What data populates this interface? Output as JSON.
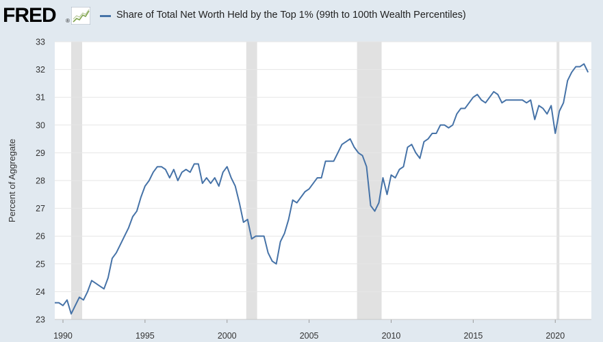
{
  "header": {
    "logo_text": "FRED",
    "logo_reg": "®",
    "legend_label": "Share of Total Net Worth Held by the Top 1% (99th to 100th Wealth Percentiles)"
  },
  "colors": {
    "series": "#4572a7",
    "plot_bg": "#ffffff",
    "page_bg": "#e1e9f0",
    "gridline": "#e6e6e6",
    "recession": "#e1e1e1"
  },
  "chart_data": {
    "type": "line",
    "title": "",
    "xlabel": "",
    "ylabel": "Percent of Aggregate",
    "xlim": [
      1989.5,
      2022.2
    ],
    "ylim": [
      23,
      33
    ],
    "y_ticks": [
      23,
      24,
      25,
      26,
      27,
      28,
      29,
      30,
      31,
      32,
      33
    ],
    "x_ticks": [
      1990,
      1995,
      2000,
      2005,
      2010,
      2015,
      2020
    ],
    "x_tick_labels": [
      "1990",
      "1995",
      "2000",
      "2005",
      "2010",
      "2015",
      "2020"
    ],
    "grid": "horizontal",
    "recessions": [
      [
        1990.5,
        1991.17
      ],
      [
        2001.17,
        2001.83
      ],
      [
        2007.92,
        2009.42
      ],
      [
        2020.08,
        2020.25
      ]
    ],
    "series": [
      {
        "name": "Share of Total Net Worth Held by the Top 1% (99th to 100th Wealth Percentiles)",
        "x_start": 1989.5,
        "step": 0.25,
        "values": [
          23.6,
          23.6,
          23.5,
          23.7,
          23.2,
          23.5,
          23.8,
          23.7,
          24.0,
          24.4,
          24.3,
          24.2,
          24.1,
          24.5,
          25.2,
          25.4,
          25.7,
          26.0,
          26.3,
          26.7,
          26.9,
          27.4,
          27.8,
          28.0,
          28.3,
          28.5,
          28.5,
          28.4,
          28.1,
          28.4,
          28.0,
          28.3,
          28.4,
          28.3,
          28.6,
          28.6,
          27.9,
          28.1,
          27.9,
          28.1,
          27.8,
          28.3,
          28.5,
          28.1,
          27.8,
          27.2,
          26.5,
          26.6,
          25.9,
          26.0,
          26.0,
          26.0,
          25.4,
          25.1,
          25.0,
          25.8,
          26.1,
          26.6,
          27.3,
          27.2,
          27.4,
          27.6,
          27.7,
          27.9,
          28.1,
          28.1,
          28.7,
          28.7,
          28.7,
          29.0,
          29.3,
          29.4,
          29.5,
          29.2,
          29.0,
          28.9,
          28.5,
          27.1,
          26.9,
          27.2,
          28.1,
          27.5,
          28.2,
          28.1,
          28.4,
          28.5,
          29.2,
          29.3,
          29.0,
          28.8,
          29.4,
          29.5,
          29.7,
          29.7,
          30.0,
          30.0,
          29.9,
          30.0,
          30.4,
          30.6,
          30.6,
          30.8,
          31.0,
          31.1,
          30.9,
          30.8,
          31.0,
          31.2,
          31.1,
          30.8,
          30.9,
          30.9,
          30.9,
          30.9,
          30.9,
          30.8,
          30.9,
          30.2,
          30.7,
          30.6,
          30.4,
          30.7,
          29.7,
          30.5,
          30.8,
          31.6,
          31.9,
          32.1,
          32.1,
          32.2,
          31.9
        ]
      }
    ]
  }
}
